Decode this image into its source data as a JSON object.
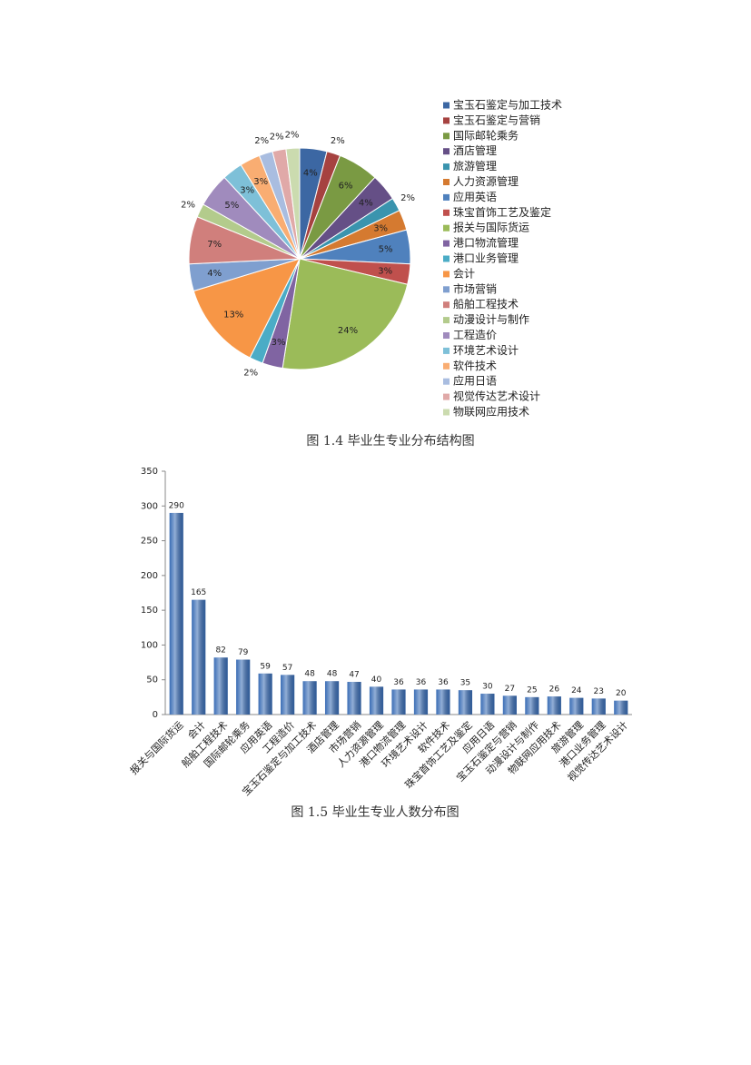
{
  "chart_data": [
    {
      "type": "pie",
      "caption": "图 1.4 毕业生专业分布结构图",
      "categories": [
        "宝玉石鉴定与加工技术",
        "宝玉石鉴定与营销",
        "国际邮轮乘务",
        "酒店管理",
        "旅游管理",
        "人力资源管理",
        "应用英语",
        "珠宝首饰工艺及鉴定",
        "报关与国际货运",
        "港口物流管理",
        "港口业务管理",
        "会计",
        "市场营销",
        "船舶工程技术",
        "动漫设计与制作",
        "工程造价",
        "环境艺术设计",
        "软件技术",
        "应用日语",
        "视觉传达艺术设计",
        "物联网应用技术"
      ],
      "values": [
        4,
        2,
        6,
        4,
        2,
        3,
        5,
        3,
        24,
        3,
        2,
        13,
        4,
        7,
        2,
        5,
        3,
        3,
        2,
        2,
        2
      ],
      "value_labels": [
        "4%",
        "2%",
        "6%",
        "4%",
        "2%",
        "3%",
        "5%",
        "3%",
        "24%",
        "3%",
        "2%",
        "13%",
        "4%",
        "7%",
        "2%",
        "5%",
        "3%",
        "3%",
        "2%",
        "2%",
        "2%"
      ],
      "colors": [
        "#3c67a3",
        "#a64240",
        "#7a9a43",
        "#654f86",
        "#3a94ae",
        "#d57a30",
        "#4f81bd",
        "#c0504d",
        "#9bbb59",
        "#8064a2",
        "#4bacc6",
        "#f79646",
        "#7f9fcf",
        "#d07f7c",
        "#b3cb8c",
        "#a08bbd",
        "#7ec0d8",
        "#f9ad72",
        "#a9bde0",
        "#e0a9a8",
        "#cbdbaf"
      ]
    },
    {
      "type": "bar",
      "caption": "图 1.5 毕业生专业人数分布图",
      "categories": [
        "报关与国际货运",
        "会计",
        "船舶工程技术",
        "国际邮轮乘务",
        "应用英语",
        "工程造价",
        "宝玉石鉴定与加工技术",
        "酒店管理",
        "市场营销",
        "人力资源管理",
        "港口物流管理",
        "环境艺术设计",
        "软件技术",
        "珠宝首饰工艺及鉴定",
        "应用日语",
        "宝玉石鉴定与营销",
        "动漫设计与制作",
        "物联网应用技术",
        "旅游管理",
        "港口业务管理",
        "视觉传达艺术设计"
      ],
      "values": [
        290,
        165,
        82,
        79,
        59,
        57,
        48,
        48,
        47,
        40,
        36,
        36,
        36,
        35,
        30,
        27,
        25,
        26,
        24,
        23,
        20
      ],
      "color": "#3a6db5",
      "ylim": [
        0,
        350
      ],
      "yticks": [
        0,
        50,
        100,
        150,
        200,
        250,
        300,
        350
      ]
    }
  ]
}
